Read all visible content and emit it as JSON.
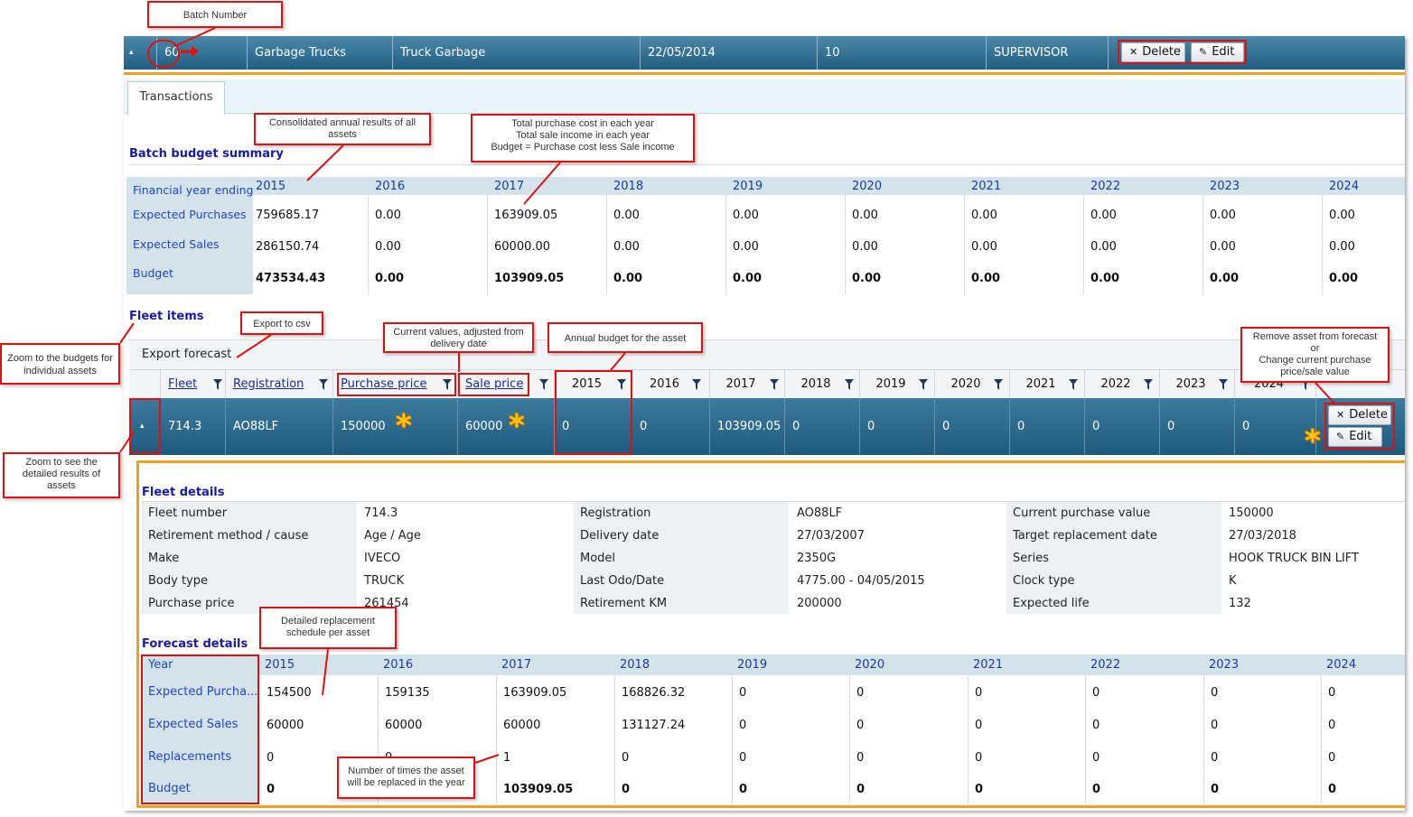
{
  "batch": {
    "expander": "▴",
    "number": "60",
    "cells": [
      "Garbage Trucks",
      "Truck Garbage",
      "22/05/2014",
      "10",
      "SUPERVISOR"
    ],
    "delete_label": "Delete",
    "edit_label": "Edit"
  },
  "tabs": {
    "transactions": "Transactions"
  },
  "summary": {
    "title": "Batch budget summary",
    "row_labels": [
      "Financial year ending",
      "Expected Purchases",
      "Expected Sales",
      "Budget"
    ],
    "years": [
      "2015",
      "2016",
      "2017",
      "2018",
      "2019",
      "2020",
      "2021",
      "2022",
      "2023",
      "2024"
    ],
    "purchases": [
      "759685.17",
      "0.00",
      "163909.05",
      "0.00",
      "0.00",
      "0.00",
      "0.00",
      "0.00",
      "0.00",
      "0.00"
    ],
    "sales": [
      "286150.74",
      "0.00",
      "60000.00",
      "0.00",
      "0.00",
      "0.00",
      "0.00",
      "0.00",
      "0.00",
      "0.00"
    ],
    "budget": [
      "473534.43",
      "0.00",
      "103909.05",
      "0.00",
      "0.00",
      "0.00",
      "0.00",
      "0.00",
      "0.00",
      "0.00"
    ]
  },
  "fleet_items": {
    "title": "Fleet items",
    "export_label": "Export forecast",
    "headers": [
      "Fleet",
      "Registration",
      "Purchase price",
      "Sale price",
      "2015",
      "2016",
      "2017",
      "2018",
      "2019",
      "2020",
      "2021",
      "2022",
      "2023",
      "2024"
    ],
    "row": {
      "expander": "▴",
      "fleet": "714.3",
      "registration": "AO88LF",
      "purchase_price": "150000",
      "sale_price": "60000",
      "years": [
        "0",
        "0",
        "103909.05",
        "0",
        "0",
        "0",
        "0",
        "0",
        "0",
        "0"
      ]
    },
    "delete_label": "Delete",
    "edit_label": "Edit"
  },
  "fleet_details": {
    "title": "Fleet details",
    "col1": [
      {
        "label": "Fleet number",
        "value": "714.3"
      },
      {
        "label": "Retirement method / cause",
        "value": "Age / Age"
      },
      {
        "label": "Make",
        "value": "IVECO"
      },
      {
        "label": "Body type",
        "value": "TRUCK"
      },
      {
        "label": "Purchase price",
        "value": "261454"
      }
    ],
    "col2": [
      {
        "label": "Registration",
        "value": "AO88LF"
      },
      {
        "label": "Delivery date",
        "value": "27/03/2007"
      },
      {
        "label": "Model",
        "value": "2350G"
      },
      {
        "label": "Last Odo/Date",
        "value": "4775.00 - 04/05/2015"
      },
      {
        "label": "Retirement KM",
        "value": "200000"
      }
    ],
    "col3": [
      {
        "label": "Current purchase value",
        "value": "150000"
      },
      {
        "label": "Target replacement date",
        "value": "27/03/2018"
      },
      {
        "label": "Series",
        "value": "HOOK TRUCK BIN LIFT"
      },
      {
        "label": "Clock type",
        "value": "K"
      },
      {
        "label": "Expected life",
        "value": "132"
      }
    ]
  },
  "forecast": {
    "title": "Forecast details",
    "row_labels": [
      "Year",
      "Expected Purcha...",
      "Expected Sales",
      "Replacements",
      "Budget"
    ],
    "years": [
      "2015",
      "2016",
      "2017",
      "2018",
      "2019",
      "2020",
      "2021",
      "2022",
      "2023",
      "2024"
    ],
    "purchases": [
      "154500",
      "159135",
      "163909.05",
      "168826.32",
      "0",
      "0",
      "0",
      "0",
      "0",
      "0"
    ],
    "sales": [
      "60000",
      "60000",
      "60000",
      "131127.24",
      "0",
      "0",
      "0",
      "0",
      "0",
      "0"
    ],
    "replacements": [
      "0",
      "0",
      "1",
      "0",
      "0",
      "0",
      "0",
      "0",
      "0",
      "0"
    ],
    "budget": [
      "0",
      "0",
      "103909.05",
      "0",
      "0",
      "0",
      "0",
      "0",
      "0",
      "0"
    ]
  },
  "annotations": {
    "batch_number": "Batch Number",
    "consolidated": "Consolidated annual results of all assets",
    "total_purchase": "Total purchase cost in each year\nTotal sale income in each year\nBudget =  Purchase cost less Sale income",
    "export_csv": "Export to csv",
    "current_values": "Current values, adjusted from delivery date",
    "annual_budget": "Annual budget for the asset",
    "remove_asset": "Remove asset from forecast\nor\nChange current purchase price/sale value",
    "zoom_budgets": "Zoom to the budgets for individual assets",
    "zoom_details": "Zoom to see the detailed results of assets",
    "detailed_schedule": "Detailed replacement schedule per asset",
    "times_replaced": "Number of times the asset will be replaced in the year"
  },
  "colors": {
    "accent_orange": "#f0a020",
    "header_blue": "#1f5e82",
    "annotation_red": "#e01010"
  }
}
